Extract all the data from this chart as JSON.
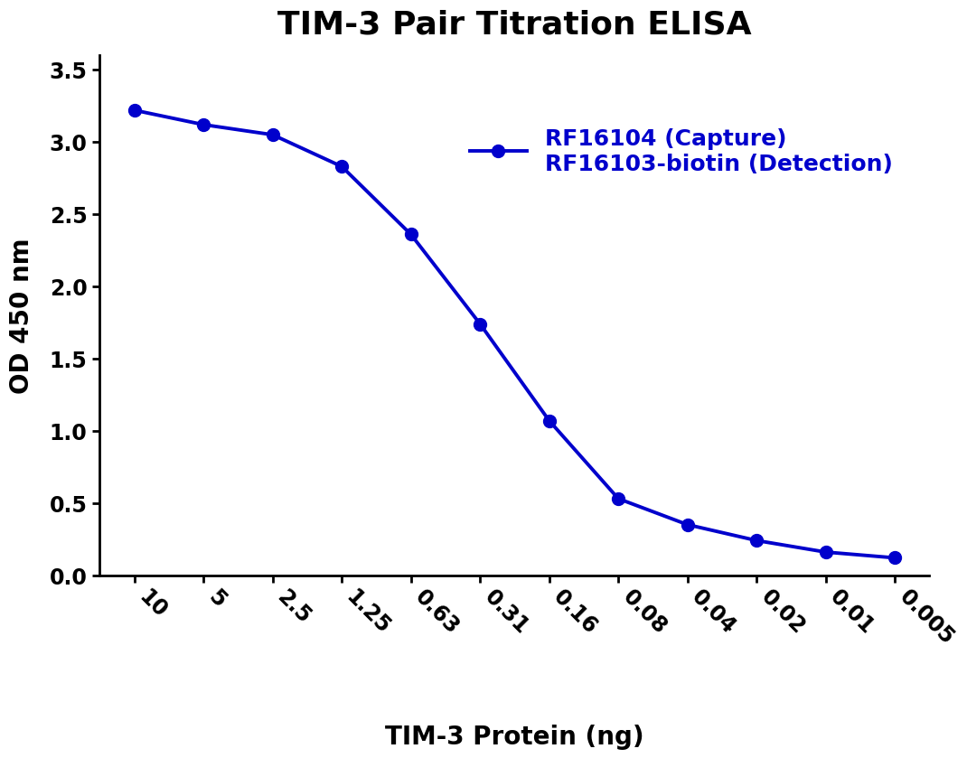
{
  "title": "TIM-3 Pair Titration ELISA",
  "xlabel": "TIM-3 Protein (ng)",
  "ylabel": "OD 450 nm",
  "x_labels": [
    "10",
    "5",
    "2.5",
    "1.25",
    "0.63",
    "0.31",
    "0.16",
    "0.08",
    "0.04",
    "0.02",
    "0.01",
    "0.005"
  ],
  "y_values": [
    3.22,
    3.12,
    3.05,
    2.83,
    2.36,
    1.74,
    1.07,
    0.53,
    0.35,
    0.24,
    0.16,
    0.12
  ],
  "ylim": [
    0,
    3.6
  ],
  "yticks": [
    0.0,
    0.5,
    1.0,
    1.5,
    2.0,
    2.5,
    3.0,
    3.5
  ],
  "line_color": "#0000CC",
  "marker": "o",
  "marker_size": 10,
  "line_width": 2.8,
  "legend_line1": "RF16104 (Capture)",
  "legend_line2": "RF16103-biotin (Detection)",
  "title_fontsize": 26,
  "label_fontsize": 20,
  "tick_fontsize": 17,
  "legend_fontsize": 18,
  "background_color": "#ffffff"
}
